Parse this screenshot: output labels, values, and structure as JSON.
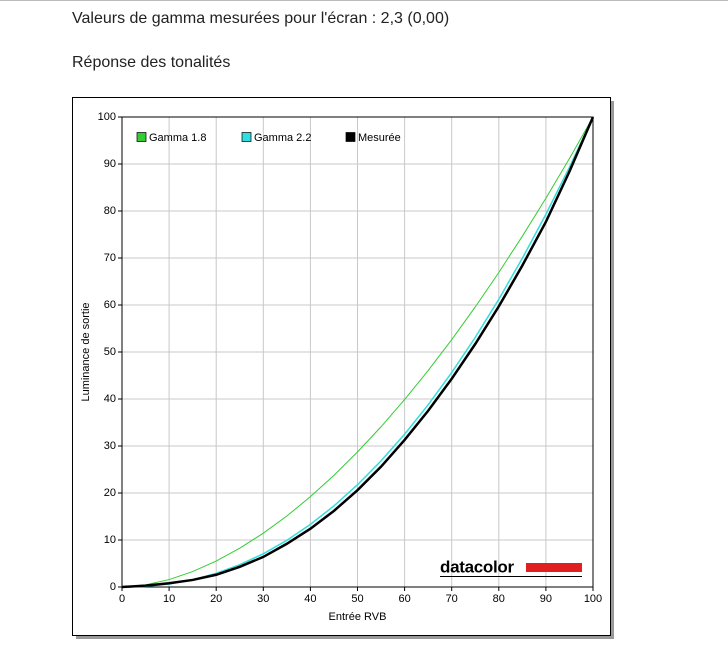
{
  "header": {
    "title": "Valeurs de gamma mesurées pour l'écran : 2,3 (0,00)",
    "subtitle": "Réponse des tonalités"
  },
  "chart_data": {
    "type": "line",
    "x_label": "Entrée RVB",
    "y_label": "Luminance de sortie",
    "watermark": "datacolor",
    "x": [
      0,
      5,
      10,
      15,
      20,
      25,
      30,
      35,
      40,
      45,
      50,
      55,
      60,
      65,
      70,
      75,
      80,
      85,
      90,
      95,
      100
    ],
    "series": [
      {
        "name": "Gamma 1.8",
        "color": "#33cc33",
        "values": [
          0,
          0.46,
          1.58,
          3.29,
          5.52,
          8.25,
          11.45,
          15.11,
          19.22,
          23.76,
          28.72,
          34.09,
          39.87,
          46.05,
          52.62,
          59.58,
          66.92,
          74.64,
          82.72,
          91.18,
          100
        ]
      },
      {
        "name": "Gamma 2.2",
        "color": "#33dddd",
        "values": [
          0,
          0.14,
          0.63,
          1.54,
          2.9,
          4.74,
          7.07,
          9.93,
          13.32,
          17.26,
          21.76,
          26.84,
          32.5,
          38.76,
          45.63,
          53.11,
          61.21,
          69.94,
          79.31,
          89.33,
          100
        ]
      },
      {
        "name": "Mesurée",
        "color": "#000000",
        "values": [
          0,
          0.3,
          0.8,
          1.5,
          2.6,
          4.3,
          6.4,
          9.2,
          12.4,
          16.2,
          20.6,
          25.6,
          31.3,
          37.5,
          44.3,
          51.7,
          59.7,
          68.4,
          77.7,
          88.4,
          100
        ]
      }
    ],
    "xlim": [
      0,
      100
    ],
    "ylim": [
      0,
      100
    ],
    "xticks": [
      0,
      10,
      20,
      30,
      40,
      50,
      60,
      70,
      80,
      90,
      100
    ],
    "yticks": [
      0,
      10,
      20,
      30,
      40,
      50,
      60,
      70,
      80,
      90,
      100
    ],
    "grid": true
  }
}
